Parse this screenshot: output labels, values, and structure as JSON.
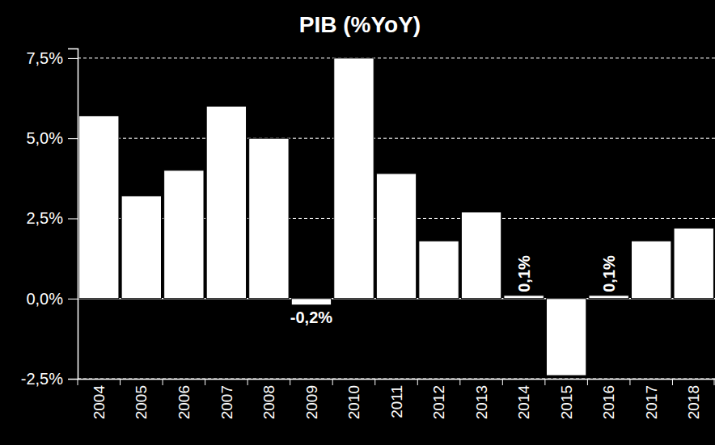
{
  "chart_data": {
    "type": "bar",
    "title": "PIB (%YoY)",
    "categories": [
      "2004",
      "2005",
      "2006",
      "2007",
      "2008",
      "2009",
      "2010",
      "2011",
      "2012",
      "2013",
      "2014",
      "2015",
      "2016",
      "2017",
      "2018"
    ],
    "values": [
      5.7,
      3.2,
      4.0,
      6.0,
      5.0,
      -0.2,
      7.5,
      3.9,
      1.8,
      2.7,
      0.1,
      -2.4,
      0.1,
      1.8,
      2.2
    ],
    "value_labels": [
      null,
      null,
      null,
      null,
      null,
      "-0,2%",
      null,
      null,
      null,
      null,
      "0,1%",
      null,
      "0,1%",
      null,
      null
    ],
    "data_labels": true,
    "color": "#ffffff",
    "ylim": [
      -2.5,
      7.8
    ],
    "yticks": [
      {
        "value": -2.5,
        "label": "-2,5%"
      },
      {
        "value": 0,
        "label": "0,0%"
      },
      {
        "value": 2.5,
        "label": "2,5%"
      },
      {
        "value": 5,
        "label": "5,0%"
      },
      {
        "value": 7.5,
        "label": "7,5%"
      }
    ],
    "grid": true
  }
}
